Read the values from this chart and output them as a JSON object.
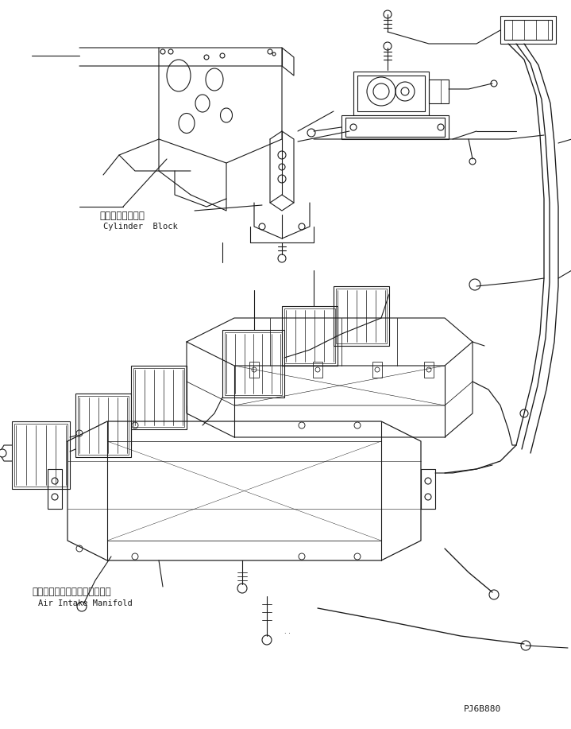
{
  "bg_color": "#ffffff",
  "line_color": "#1a1a1a",
  "fig_width": 7.19,
  "fig_height": 9.17,
  "dpi": 100,
  "label1_japanese": "シリンダブロック",
  "label1_english": "Cylinder  Block",
  "label2_japanese": "エアーインテイクマニホルード",
  "label2_english": "Air Intake Manifold",
  "part_number": "PJ6B880"
}
